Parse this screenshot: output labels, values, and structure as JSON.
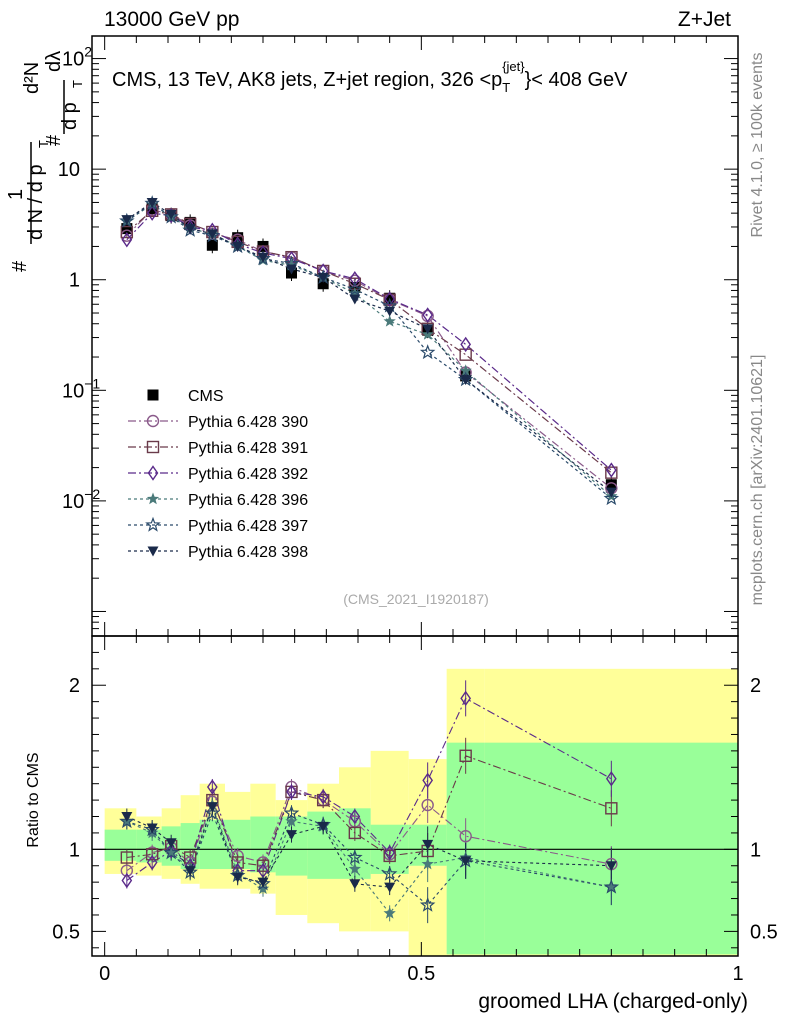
{
  "header": {
    "left": "13000 GeV pp",
    "right": "Z+Jet"
  },
  "side": {
    "rivet": "Rivet 4.1.0, ≥ 100k events",
    "mcplots": "mcplots.cern.ch [arXiv:2401.10621]"
  },
  "chart_data": [
    {
      "type": "scatter",
      "title": "CMS, 13 TeV, AK8 jets, Z+jet region, 326 <p_T^{jet}< 408 GeV",
      "title_parts": {
        "pre": "CMS, 13 TeV, AK8 jets, Z+jet region, 326 <p",
        "sub": "T",
        "sup": "{jet}",
        "post": "}< 408 GeV"
      },
      "ylabel_parts": {
        "one": "1",
        "hash": "#",
        "hash2": "#",
        "dN": "d N / d p",
        "T": "T",
        "d2N": "d²N",
        "dpT": "d p",
        "dlambda": "dλ"
      },
      "yscale": "log",
      "xlim": [
        -0.02,
        1.0
      ],
      "ylim": [
        0.0006,
        160
      ],
      "ytick_labels": [
        {
          "base": "10",
          "exp": "2",
          "v": 100
        },
        {
          "base": "10",
          "exp": "",
          "v": 10
        },
        {
          "base": "1",
          "exp": "",
          "v": 1
        },
        {
          "base": "10",
          "exp": "−1",
          "v": 0.1
        },
        {
          "base": "10",
          "exp": "−2",
          "v": 0.01
        }
      ],
      "x": [
        0.035,
        0.075,
        0.105,
        0.135,
        0.17,
        0.21,
        0.25,
        0.295,
        0.345,
        0.395,
        0.45,
        0.51,
        0.57,
        0.8
      ],
      "series": [
        {
          "name": "CMS",
          "marker": "square-filled",
          "color": "#000000",
          "dash": "",
          "values": [
            2.9,
            4.4,
            3.8,
            3.3,
            2.05,
            2.4,
            2.0,
            1.15,
            0.92,
            0.85,
            0.68,
            0.35,
            0.135,
            0.014
          ]
        },
        {
          "name": "Pythia 6.428 390",
          "marker": "circle-open",
          "color": "#8a5a8a",
          "dash": "8,3,2,3",
          "values": [
            2.5,
            4.3,
            3.9,
            3.1,
            2.6,
            2.3,
            1.8,
            1.6,
            1.2,
            0.98,
            0.66,
            0.47,
            0.145,
            0.013
          ]
        },
        {
          "name": "Pythia 6.428 391",
          "marker": "square-open",
          "color": "#6a3a4a",
          "dash": "8,3,2,3",
          "values": [
            2.7,
            4.2,
            3.9,
            3.2,
            2.7,
            2.2,
            1.8,
            1.6,
            1.2,
            0.92,
            0.66,
            0.36,
            0.21,
            0.018
          ]
        },
        {
          "name": "Pythia 6.428 392",
          "marker": "diamond-open",
          "color": "#5a2a8a",
          "dash": "8,3,2,3",
          "values": [
            2.3,
            4.0,
            3.8,
            3.0,
            2.8,
            2.1,
            1.75,
            1.55,
            1.2,
            1.02,
            0.67,
            0.48,
            0.26,
            0.019
          ]
        },
        {
          "name": "Pythia 6.428 396",
          "marker": "star-filled",
          "color": "#4a7a7a",
          "dash": "3,3",
          "values": [
            3.4,
            4.8,
            3.7,
            2.9,
            2.6,
            2.0,
            1.5,
            1.35,
            1.05,
            0.75,
            0.42,
            0.32,
            0.15,
            0.011
          ]
        },
        {
          "name": "Pythia 6.428 397",
          "marker": "star-open",
          "color": "#2a4a6a",
          "dash": "3,3",
          "values": [
            3.4,
            4.9,
            3.7,
            2.8,
            2.5,
            2.0,
            1.55,
            1.4,
            1.05,
            0.82,
            0.58,
            0.22,
            0.125,
            0.0105
          ]
        },
        {
          "name": "Pythia 6.428 398",
          "marker": "triangle-down-filled",
          "color": "#1a2a4a",
          "dash": "3,3",
          "values": [
            3.5,
            5.0,
            3.9,
            2.9,
            2.6,
            2.0,
            1.6,
            1.25,
            1.05,
            0.67,
            0.52,
            0.36,
            0.125,
            0.012
          ]
        }
      ],
      "watermark": "(CMS_2021_I1920187)"
    },
    {
      "type": "scatter",
      "ylabel": "Ratio to CMS",
      "xlabel": "groomed LHA (charged-only)",
      "xlim": [
        -0.02,
        1.0
      ],
      "ylim": [
        0.35,
        2.3
      ],
      "ytick_labels": [
        "0.5",
        "1",
        "2"
      ],
      "ytick_values": [
        0.5,
        1,
        2
      ],
      "xtick_labels": [
        "0",
        "0.5",
        "1"
      ],
      "xtick_values": [
        0,
        0.5,
        1
      ],
      "bin_edges": [
        0,
        0.05,
        0.09,
        0.12,
        0.15,
        0.19,
        0.23,
        0.27,
        0.32,
        0.37,
        0.42,
        0.48,
        0.54,
        0.6,
        1.0
      ],
      "band_yellow": [
        [
          0.85,
          1.25
        ],
        [
          0.84,
          1.2
        ],
        [
          0.82,
          1.25
        ],
        [
          0.79,
          1.33
        ],
        [
          0.76,
          1.4
        ],
        [
          0.76,
          1.35
        ],
        [
          0.73,
          1.4
        ],
        [
          0.6,
          1.3
        ],
        [
          0.55,
          1.4
        ],
        [
          0.5,
          1.5
        ],
        [
          0.5,
          1.6
        ],
        [
          0.3,
          1.55
        ],
        [
          0.3,
          2.1
        ],
        [
          0.3,
          2.1
        ]
      ],
      "band_green": [
        [
          0.93,
          1.12
        ],
        [
          0.92,
          1.12
        ],
        [
          0.9,
          1.14
        ],
        [
          0.88,
          1.16
        ],
        [
          0.88,
          1.18
        ],
        [
          0.88,
          1.18
        ],
        [
          0.86,
          1.2
        ],
        [
          0.84,
          1.2
        ],
        [
          0.82,
          1.23
        ],
        [
          0.82,
          1.25
        ],
        [
          0.85,
          1.15
        ],
        [
          0.9,
          1.15
        ],
        [
          0.36,
          1.65
        ],
        [
          0.36,
          1.65
        ]
      ],
      "series": [
        {
          "name": "Pythia 6.428 390",
          "values": [
            0.87,
            0.98,
            1.01,
            0.92,
            1.29,
            0.96,
            0.92,
            1.38,
            1.3,
            1.17,
            0.97,
            1.27,
            1.08,
            0.91
          ]
        },
        {
          "name": "Pythia 6.428 391",
          "values": [
            0.95,
            0.97,
            1.02,
            0.95,
            1.3,
            0.92,
            0.9,
            1.35,
            1.3,
            1.1,
            0.96,
            0.99,
            1.57,
            1.25
          ]
        },
        {
          "name": "Pythia 6.428 392",
          "values": [
            0.81,
            0.92,
            0.99,
            0.9,
            1.38,
            0.87,
            0.87,
            1.35,
            1.32,
            1.2,
            0.98,
            1.42,
            1.92,
            1.43
          ]
        },
        {
          "name": "Pythia 6.428 396",
          "values": [
            1.17,
            1.1,
            0.98,
            0.88,
            1.27,
            0.85,
            0.76,
            1.17,
            1.14,
            0.88,
            0.61,
            0.91,
            0.95,
            0.77
          ]
        },
        {
          "name": "Pythia 6.428 397",
          "values": [
            1.17,
            1.12,
            0.98,
            0.86,
            1.22,
            0.84,
            0.79,
            1.22,
            1.15,
            0.95,
            0.85,
            0.66,
            0.93,
            0.77
          ]
        },
        {
          "name": "Pythia 6.428 398",
          "values": [
            1.2,
            1.13,
            1.04,
            0.87,
            1.26,
            0.83,
            0.8,
            1.09,
            1.14,
            0.79,
            0.77,
            1.03,
            0.93,
            0.9
          ]
        }
      ]
    }
  ]
}
